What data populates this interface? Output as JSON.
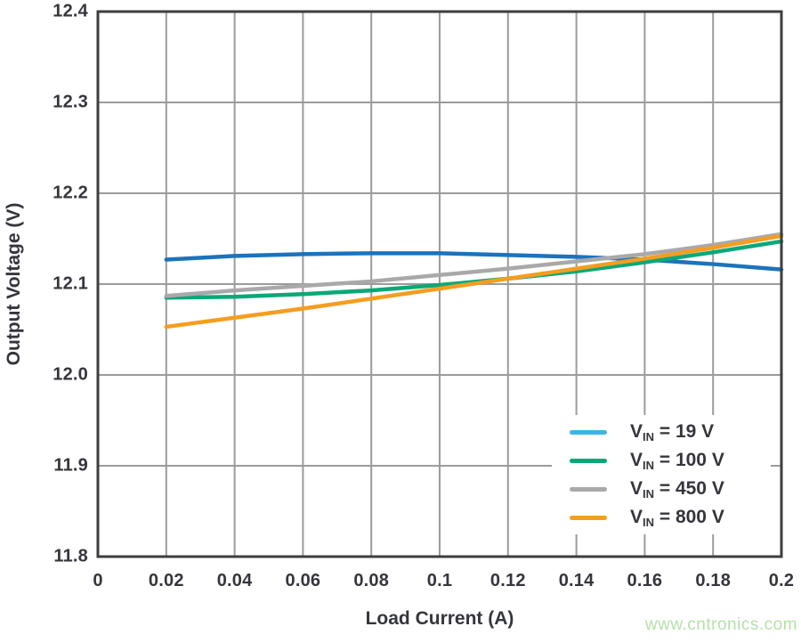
{
  "style": {
    "background": "#ffffff",
    "text_color": "#35363d",
    "grid_color": "#9b9b9b",
    "border_color": "#3e3e3e"
  },
  "watermark": {
    "text": "www.cntronics.com",
    "color": "#b5e0aa"
  },
  "chart_data": {
    "type": "line",
    "title": "",
    "xlabel": "Load Current (A)",
    "ylabel": "Output Voltage (V)",
    "xlim": [
      0,
      0.2
    ],
    "ylim": [
      11.8,
      12.4
    ],
    "grid": true,
    "legend_position": "lower right",
    "x_ticks": [
      0,
      0.02,
      0.04,
      0.06,
      0.08,
      0.1,
      0.12,
      0.14,
      0.16,
      0.18,
      0.2
    ],
    "x_tick_labels": [
      "0",
      "0.02",
      "0.04",
      "0.06",
      "0.08",
      "0.1",
      "0.12",
      "0.14",
      "0.16",
      "0.18",
      "0.2"
    ],
    "y_ticks": [
      11.8,
      11.9,
      12.0,
      12.1,
      12.2,
      12.3,
      12.4
    ],
    "y_tick_labels": [
      "11.8",
      "11.9",
      "12.0",
      "12.1",
      "12.2",
      "12.3",
      "12.4"
    ],
    "x": [
      0.02,
      0.04,
      0.06,
      0.08,
      0.1,
      0.12,
      0.14,
      0.16,
      0.18,
      0.2
    ],
    "series": [
      {
        "name": "VIN = 19 V",
        "label": {
          "base": "V",
          "sub": "IN",
          "rest": "= 19 V"
        },
        "line_color": "#1c73bb",
        "legend_color": "#38b6e4",
        "values": [
          12.127,
          12.131,
          12.133,
          12.134,
          12.134,
          12.132,
          12.13,
          12.127,
          12.122,
          12.116
        ]
      },
      {
        "name": "VIN = 100 V",
        "label": {
          "base": "V",
          "sub": "IN",
          "rest": "= 100 V"
        },
        "line_color": "#0aa878",
        "legend_color": "#0aa878",
        "values": [
          12.085,
          12.086,
          12.089,
          12.093,
          12.099,
          12.106,
          12.114,
          12.124,
          12.135,
          12.147
        ]
      },
      {
        "name": "VIN = 450 V",
        "label": {
          "base": "V",
          "sub": "IN",
          "rest": "= 450 V"
        },
        "line_color": "#a9a9ab",
        "legend_color": "#a9a9ab",
        "values": [
          12.087,
          12.093,
          12.098,
          12.103,
          12.11,
          12.117,
          12.125,
          12.133,
          12.143,
          12.155
        ]
      },
      {
        "name": "VIN = 800 V",
        "label": {
          "base": "V",
          "sub": "IN",
          "rest": "= 800 V"
        },
        "line_color": "#f59d20",
        "legend_color": "#f59d20",
        "values": [
          12.053,
          12.063,
          12.073,
          12.084,
          12.095,
          12.106,
          12.117,
          12.128,
          12.14,
          12.153
        ]
      }
    ]
  }
}
